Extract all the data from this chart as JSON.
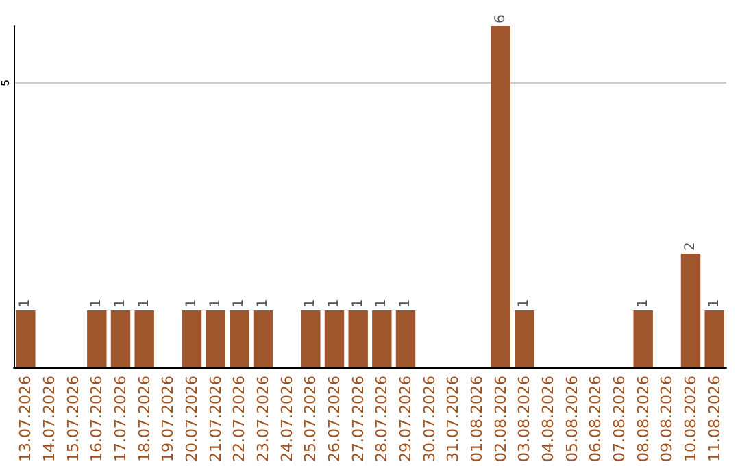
{
  "chart_data": {
    "type": "bar",
    "categories": [
      "13.07.2026",
      "14.07.2026",
      "15.07.2026",
      "16.07.2026",
      "17.07.2026",
      "18.07.2026",
      "19.07.2026",
      "20.07.2026",
      "21.07.2026",
      "22.07.2026",
      "23.07.2026",
      "24.07.2026",
      "25.07.2026",
      "26.07.2026",
      "27.07.2026",
      "28.07.2026",
      "29.07.2026",
      "30.07.2026",
      "31.07.2026",
      "01.08.2026",
      "02.08.2026",
      "03.08.2026",
      "04.08.2026",
      "05.08.2026",
      "06.08.2026",
      "07.08.2026",
      "08.08.2026",
      "09.08.2026",
      "10.08.2026",
      "11.08.2026"
    ],
    "values": [
      1,
      0,
      0,
      1,
      1,
      1,
      0,
      1,
      1,
      1,
      1,
      0,
      1,
      1,
      1,
      1,
      1,
      0,
      0,
      0,
      6,
      1,
      0,
      0,
      0,
      0,
      1,
      0,
      2,
      1
    ],
    "value_labels": [
      "1",
      null,
      null,
      "1",
      "1",
      "1",
      null,
      "1",
      "1",
      "1",
      "1",
      null,
      "1",
      "1",
      "1",
      "1",
      "1",
      null,
      null,
      null,
      "6",
      "1",
      null,
      null,
      null,
      null,
      "1",
      null,
      "2",
      "1"
    ],
    "color": "#a0562c",
    "ylim": [
      0,
      6
    ],
    "yticks": [
      5
    ],
    "grid": "y"
  }
}
